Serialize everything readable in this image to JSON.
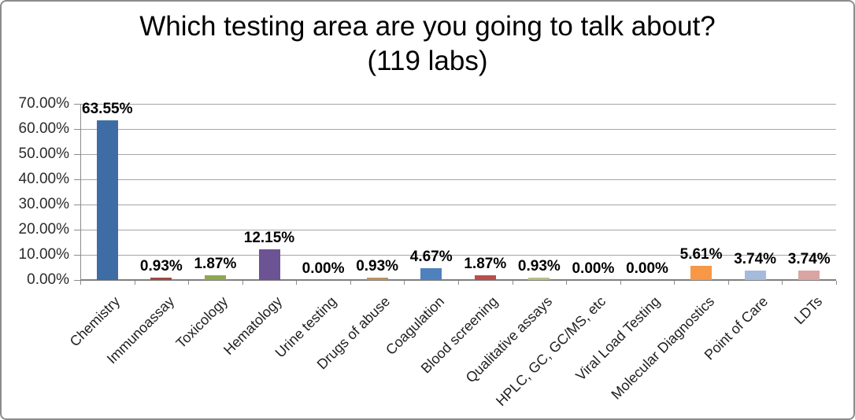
{
  "chart_data": {
    "type": "bar",
    "title_line1": "Which testing area are you going to talk about?",
    "title_line2": "(119 labs)",
    "categories": [
      "Chemistry",
      "Immunoassay",
      "Toxicology",
      "Hematology",
      "Urine testing",
      "Drugs of abuse",
      "Coagulation",
      "Blood screening",
      "Qualitative assays",
      "HPLC, GC, GC/MS, etc",
      "Viral Load Testing",
      "Molecular Diagnostics",
      "Point of Care",
      "LDTs"
    ],
    "values": [
      63.55,
      0.93,
      1.87,
      12.15,
      0.0,
      0.93,
      4.67,
      1.87,
      0.93,
      0.0,
      0.0,
      5.61,
      3.74,
      3.74
    ],
    "data_labels": [
      "63.55%",
      "0.93%",
      "1.87%",
      "12.15%",
      "0.00%",
      "0.93%",
      "4.67%",
      "1.87%",
      "0.93%",
      "0.00%",
      "0.00%",
      "5.61%",
      "3.74%",
      "3.74%"
    ],
    "bar_colors": [
      "#3E6DA5",
      "#9C4A43",
      "#8FA850",
      "#6B5394",
      "#3D9AB0",
      "#C0915E",
      "#4E81BD",
      "#BA4F4B",
      "#B2C183",
      "#8064A2",
      "#4BACC6",
      "#F79748",
      "#A4BBDC",
      "#D9A5A3"
    ],
    "y_ticks": [
      "70.00%",
      "60.00%",
      "50.00%",
      "40.00%",
      "30.00%",
      "20.00%",
      "10.00%",
      "0.00%"
    ],
    "ylim": [
      0,
      70
    ],
    "grid": true,
    "legend": "none",
    "xlabel": "",
    "ylabel": ""
  },
  "colors": {
    "gridline": "#a6a6a6",
    "axis": "#8c8c8c",
    "border": "#8c8c8c",
    "axis_text": "#2b2b2b",
    "data_label_text": "#000000",
    "background": "#ffffff"
  }
}
